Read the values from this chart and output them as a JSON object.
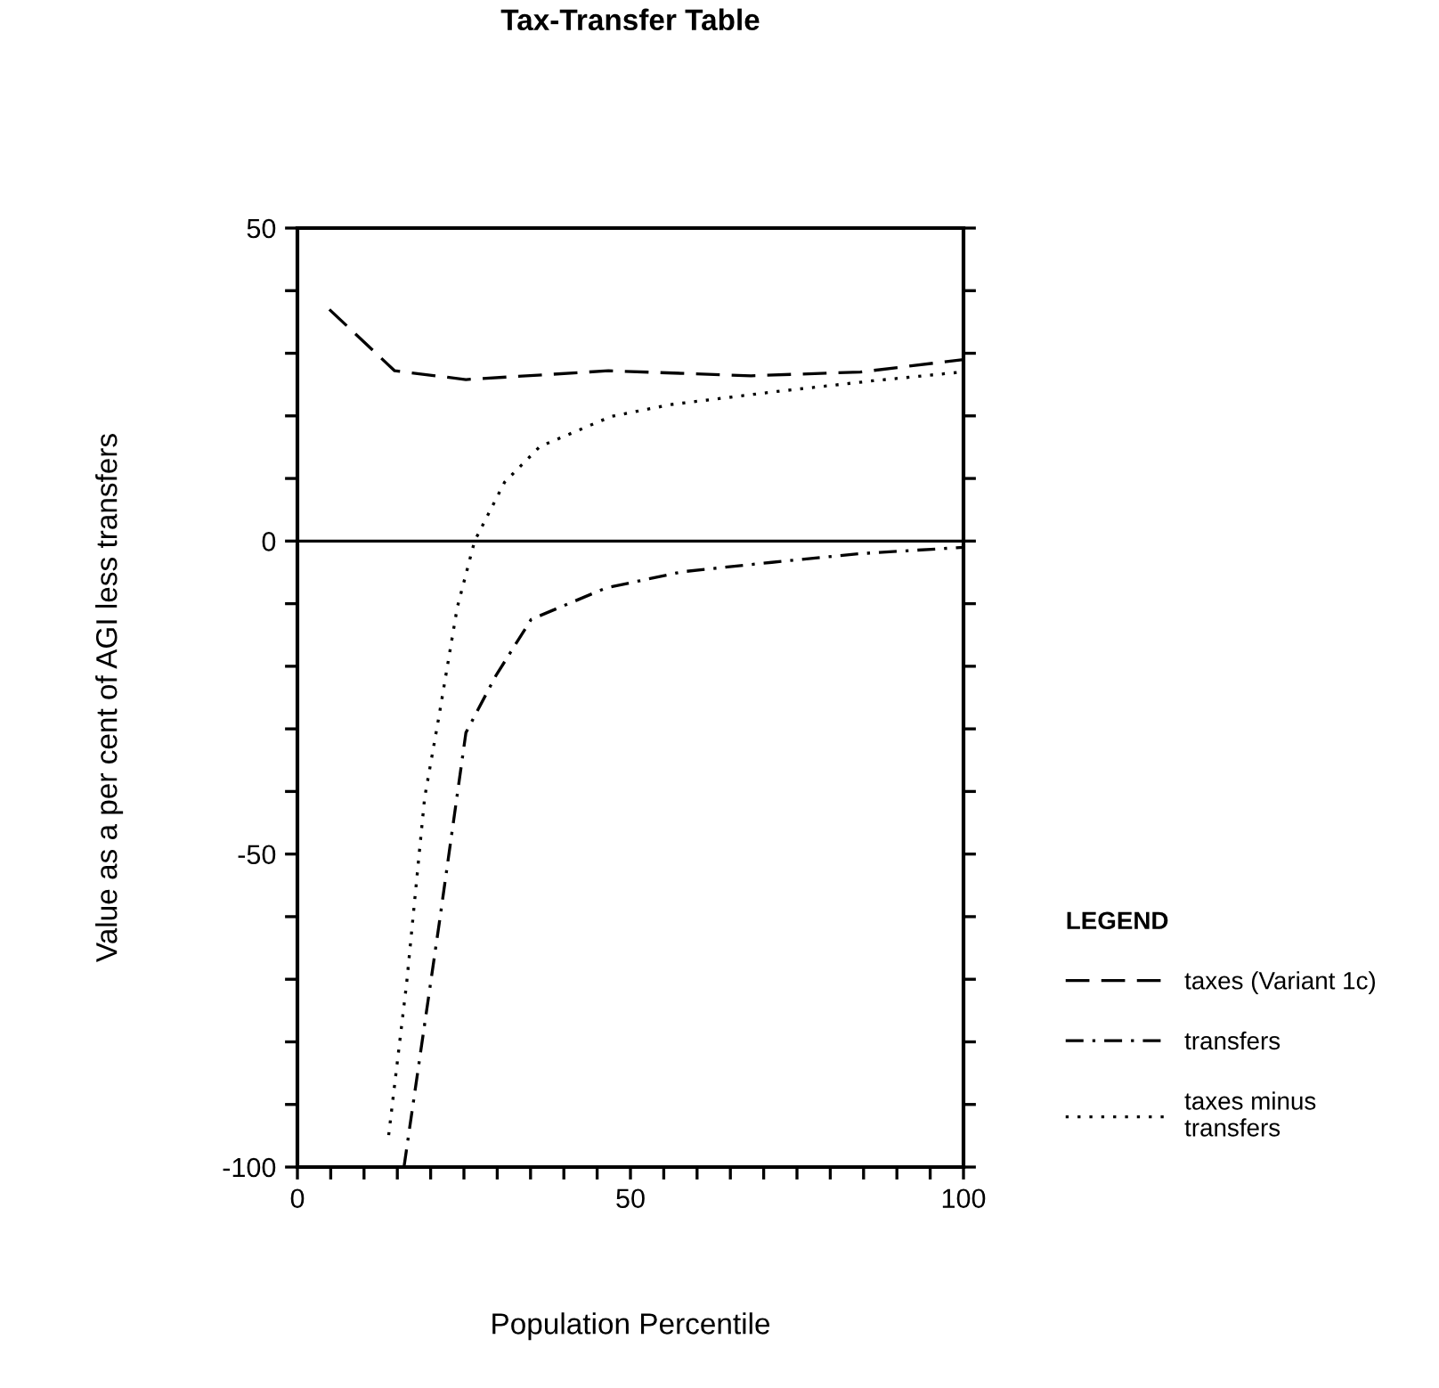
{
  "chart_data": {
    "type": "line",
    "title": "Tax-Transfer Table",
    "xlabel": "Population Percentile",
    "ylabel": "Value as a per cent of AGI less transfers",
    "legend_title": "LEGEND",
    "legend": "right",
    "grid": false,
    "xlim": [
      0,
      100
    ],
    "ylim": [
      -100,
      50
    ],
    "xticks": [
      0,
      {
        "value": 5,
        "label": null
      },
      {
        "value": 10,
        "label": null
      },
      {
        "value": 15,
        "label": null
      },
      {
        "value": 20,
        "label": null
      },
      {
        "value": 25,
        "label": null
      },
      {
        "value": 30,
        "label": null
      },
      {
        "value": 35,
        "label": null
      },
      {
        "value": 40,
        "label": null
      },
      {
        "value": 45,
        "label": null
      },
      50,
      {
        "value": 55,
        "label": null
      },
      {
        "value": 60,
        "label": null
      },
      {
        "value": 65,
        "label": null
      },
      {
        "value": 70,
        "label": null
      },
      {
        "value": 75,
        "label": null
      },
      {
        "value": 80,
        "label": null
      },
      {
        "value": 85,
        "label": null
      },
      {
        "value": 90,
        "label": null
      },
      {
        "value": 95,
        "label": null
      },
      100
    ],
    "yticks": [
      -100,
      {
        "value": -90,
        "label": null
      },
      {
        "value": -80,
        "label": null
      },
      {
        "value": -70,
        "label": null
      },
      {
        "value": -60,
        "label": null
      },
      -50,
      {
        "value": -40,
        "label": null
      },
      {
        "value": -30,
        "label": null
      },
      {
        "value": -20,
        "label": null
      },
      {
        "value": -10,
        "label": null
      },
      0,
      {
        "value": 10,
        "label": null
      },
      {
        "value": 20,
        "label": null
      },
      {
        "value": 30,
        "label": null
      },
      {
        "value": 40,
        "label": null
      },
      50
    ],
    "ref_lines": [
      {
        "axis": "y",
        "value": 0,
        "color": "#000000",
        "line_style": "solid"
      }
    ],
    "series": [
      {
        "name": "taxes (Variant 1c)",
        "color": "#000000",
        "line_style": "dashed",
        "x": [
          4.8,
          14.6,
          25.3,
          46.7,
          68.1,
          84.5,
          100
        ],
        "values": [
          37,
          27.2,
          25.8,
          27.2,
          26.4,
          27,
          29
        ]
      },
      {
        "name": "transfers",
        "color": "#000000",
        "line_style": "dashdot",
        "x": [
          16,
          21.3,
          25.3,
          29.8,
          35.1,
          46.3,
          57.8,
          71.2,
          84.6,
          100
        ],
        "values": [
          -100,
          -61,
          -30.6,
          -21.5,
          -12.5,
          -7.5,
          -4.9,
          -3.4,
          -2,
          -1
        ]
      },
      {
        "name": "taxes minus\ntransfers",
        "color": "#000000",
        "line_style": "dotted",
        "x": [
          13.7,
          16.4,
          19.1,
          21.3,
          24,
          26.6,
          31.1,
          36.4,
          47.1,
          56,
          72,
          86.4,
          99.7
        ],
        "values": [
          -94.9,
          -70.6,
          -41,
          -27.7,
          -10.6,
          0,
          9.4,
          15.1,
          19.9,
          21.8,
          23.9,
          25.6,
          27
        ]
      }
    ]
  }
}
